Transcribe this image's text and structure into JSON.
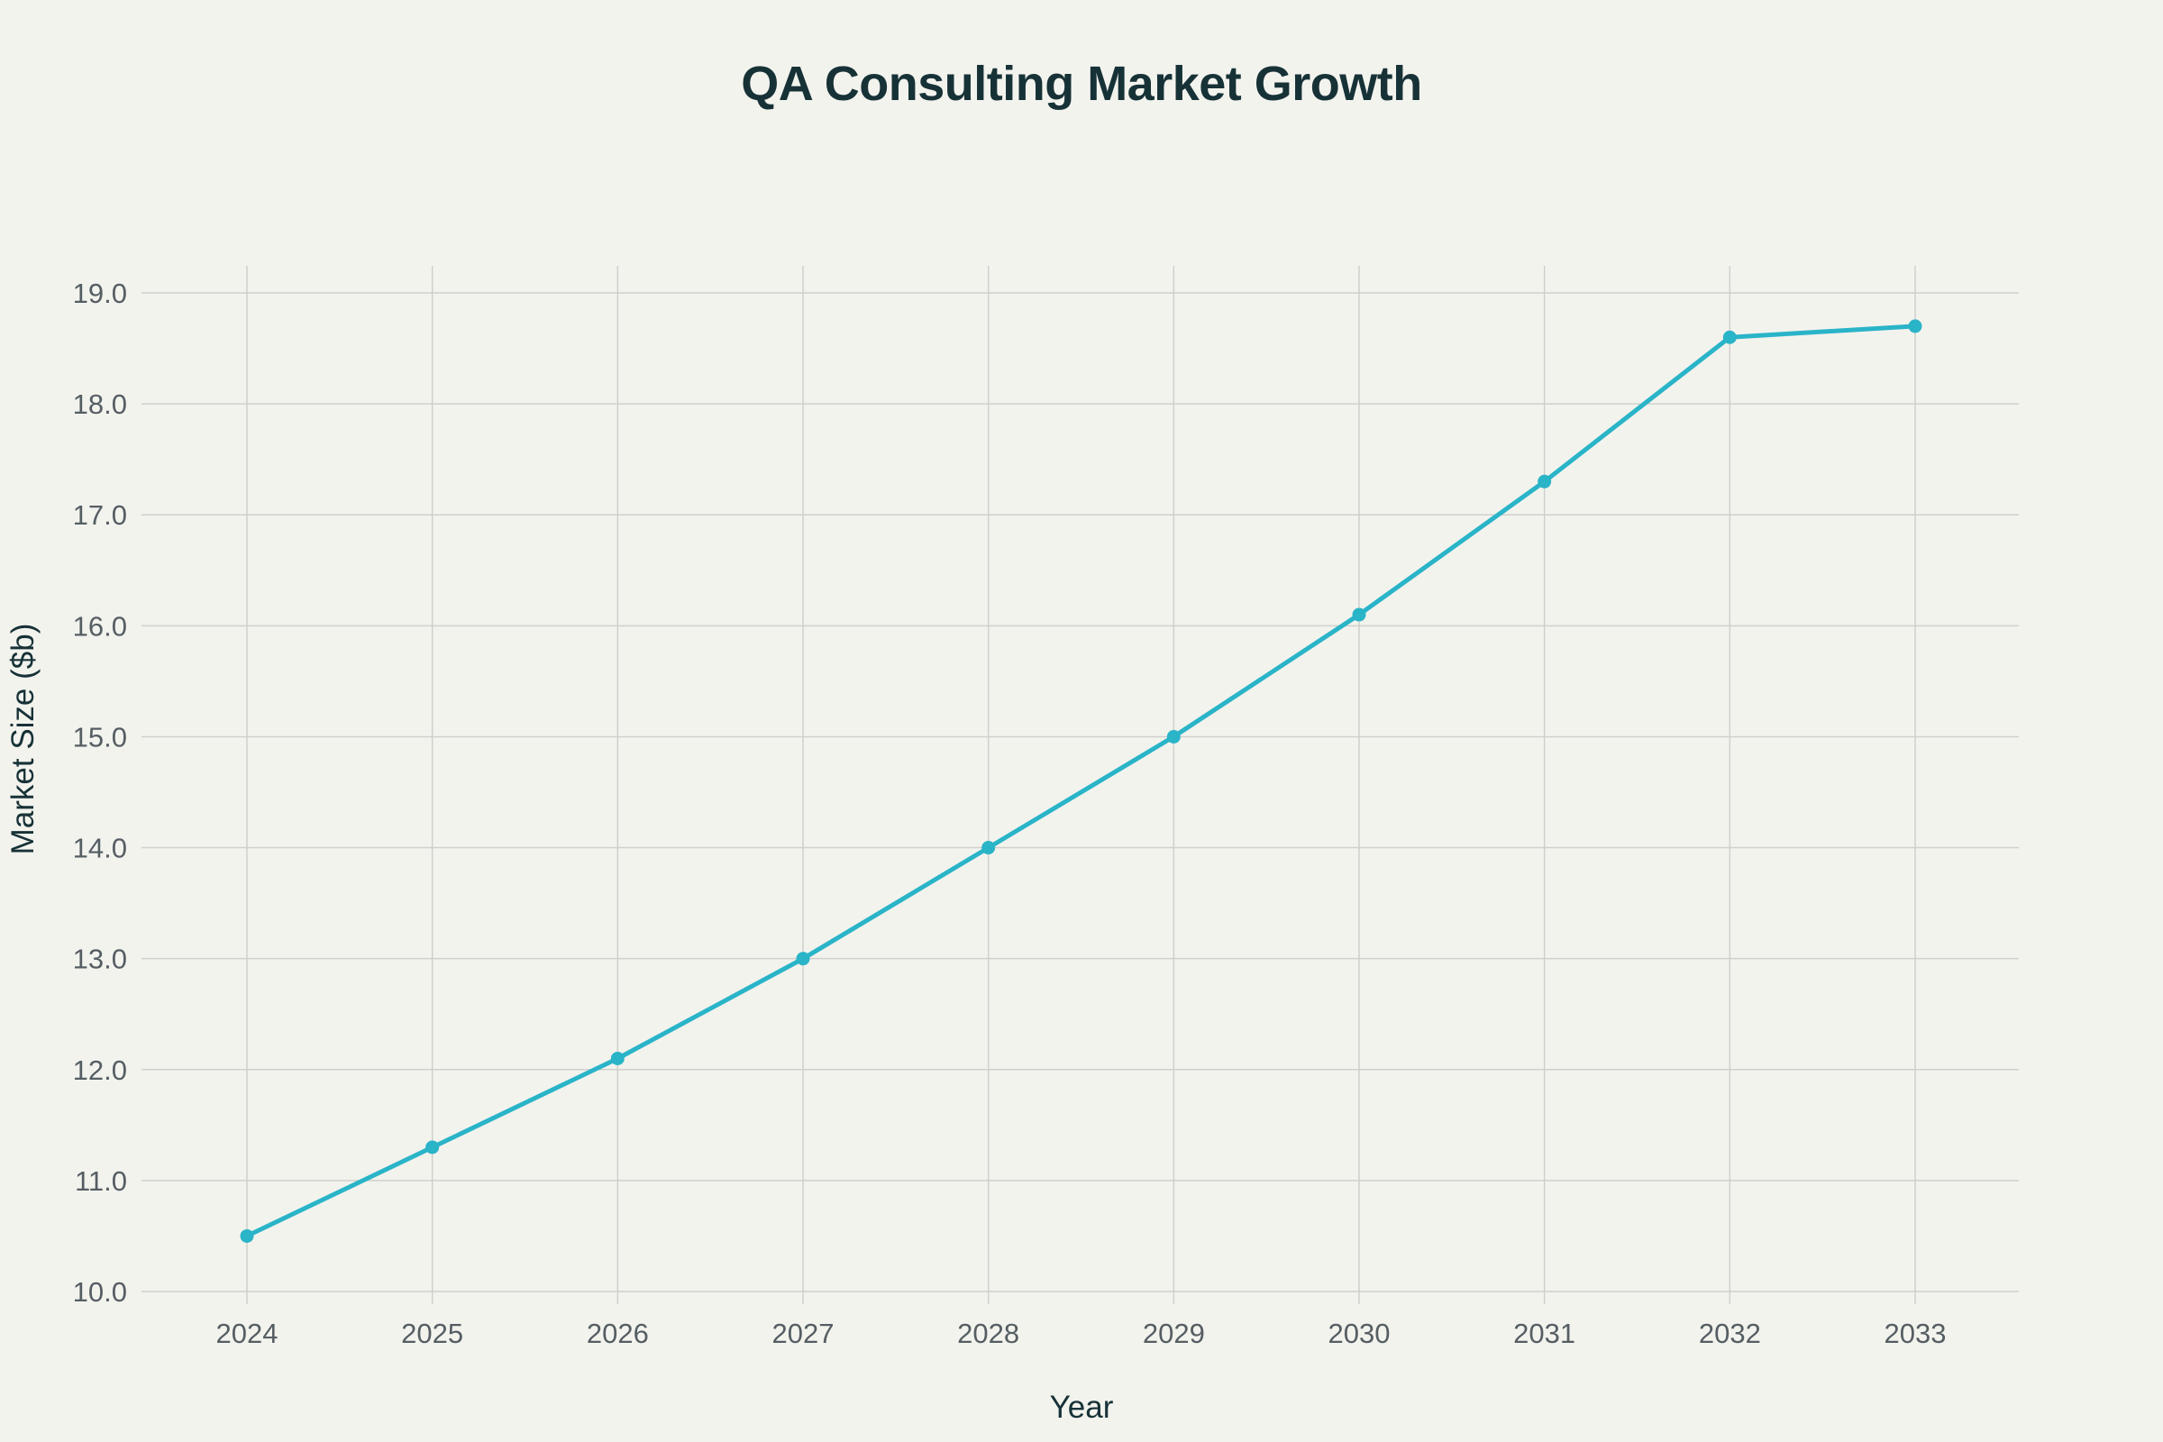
{
  "chart_data": {
    "type": "line",
    "title": "QA Consulting Market Growth",
    "xlabel": "Year",
    "ylabel": "Market Size ($b)",
    "x": [
      "2024",
      "2025",
      "2026",
      "2027",
      "2028",
      "2029",
      "2030",
      "2031",
      "2032",
      "2033"
    ],
    "series": [
      {
        "values": [
          10.5,
          11.3,
          12.1,
          13.0,
          14.0,
          15.0,
          16.1,
          17.3,
          18.6,
          18.7
        ]
      }
    ],
    "ylim": [
      10,
      19
    ],
    "y_ticks": [
      "10.0",
      "11.0",
      "12.0",
      "13.0",
      "14.0",
      "15.0",
      "16.0",
      "17.0",
      "18.0",
      "19.0"
    ],
    "grid": true,
    "legend": "none",
    "colors": {
      "line": "#2ab4c8",
      "background": "#f3f3ee",
      "grid": "#cfd0cc",
      "title": "#173237"
    }
  }
}
